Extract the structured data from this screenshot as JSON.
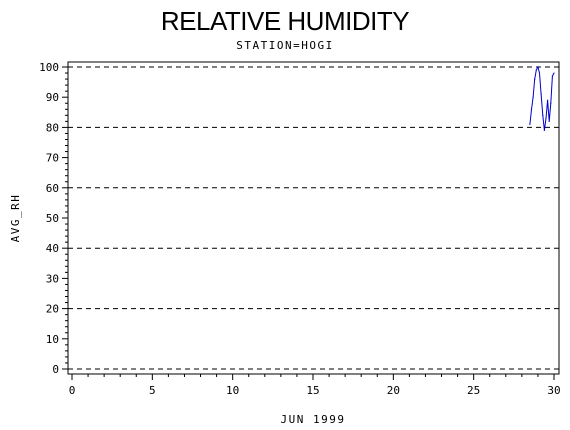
{
  "chart_data": {
    "type": "line",
    "title": "RELATIVE HUMIDITY",
    "subtitle": "STATION=HOGI",
    "xlabel": "JUN 1999",
    "ylabel": "AVG_RH",
    "xlim": [
      0,
      30
    ],
    "ylim": [
      0,
      100
    ],
    "x_ticks": [
      0,
      5,
      10,
      15,
      20,
      25,
      30
    ],
    "y_ticks": [
      0,
      10,
      20,
      30,
      40,
      50,
      60,
      70,
      80,
      90,
      100
    ],
    "grid_y": [
      0,
      20,
      40,
      60,
      80,
      100
    ],
    "grid_style": "dashed",
    "series": [
      {
        "color": "#0000cc",
        "x": [
          28.5,
          28.6,
          28.7,
          28.8,
          28.9,
          29.0,
          29.1,
          29.2,
          29.3,
          29.4,
          29.5,
          29.6,
          29.7,
          29.8,
          29.9,
          30.0
        ],
        "y": [
          81,
          86,
          90,
          96,
          99,
          100,
          98,
          91,
          84,
          79,
          83,
          89,
          82,
          88,
          97,
          98
        ]
      }
    ]
  }
}
